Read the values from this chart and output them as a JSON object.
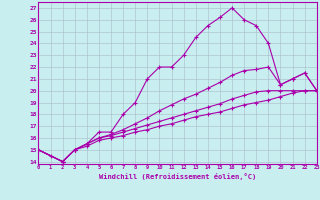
{
  "xlabel": "Windchill (Refroidissement éolien,°C)",
  "x_ticks": [
    0,
    1,
    2,
    3,
    4,
    5,
    6,
    7,
    8,
    9,
    10,
    11,
    12,
    13,
    14,
    15,
    16,
    17,
    18,
    19,
    20,
    21,
    22,
    23
  ],
  "y_ticks": [
    14,
    15,
    16,
    17,
    18,
    19,
    20,
    21,
    22,
    23,
    24,
    25,
    26,
    27
  ],
  "xlim": [
    0,
    23
  ],
  "ylim": [
    13.8,
    27.5
  ],
  "background_color": "#c8eef0",
  "grid_color": "#aabbcc",
  "line_color": "#aa00aa",
  "line1_x": [
    0,
    1,
    2,
    3,
    4,
    5,
    6,
    7,
    8,
    9,
    10,
    11,
    12,
    13,
    14,
    15,
    16,
    17,
    18,
    19,
    20,
    21,
    22,
    23
  ],
  "line1_y": [
    15.0,
    14.5,
    14.0,
    15.0,
    15.5,
    16.5,
    16.5,
    18.0,
    19.0,
    21.0,
    22.0,
    22.0,
    23.0,
    24.5,
    25.5,
    26.2,
    27.0,
    26.0,
    25.5,
    24.0,
    20.5,
    21.0,
    21.5,
    20.0
  ],
  "line2_x": [
    0,
    2,
    3,
    4,
    5,
    6,
    7,
    8,
    9,
    10,
    11,
    12,
    13,
    14,
    15,
    16,
    17,
    18,
    19,
    20,
    21,
    22,
    23
  ],
  "line2_y": [
    15.0,
    14.0,
    15.0,
    15.5,
    16.0,
    16.3,
    16.7,
    17.2,
    17.7,
    18.3,
    18.8,
    19.3,
    19.7,
    20.2,
    20.7,
    21.3,
    21.7,
    21.8,
    22.0,
    20.5,
    21.0,
    21.5,
    20.0
  ],
  "line3_x": [
    0,
    2,
    3,
    4,
    5,
    6,
    7,
    8,
    9,
    10,
    11,
    12,
    13,
    14,
    15,
    16,
    17,
    18,
    19,
    20,
    21,
    22,
    23
  ],
  "line3_y": [
    15.0,
    14.0,
    15.0,
    15.5,
    16.0,
    16.2,
    16.5,
    16.8,
    17.1,
    17.4,
    17.7,
    18.0,
    18.3,
    18.6,
    18.9,
    19.3,
    19.6,
    19.9,
    20.0,
    20.0,
    20.0,
    20.0,
    20.0
  ],
  "line4_x": [
    0,
    2,
    3,
    4,
    5,
    6,
    7,
    8,
    9,
    10,
    11,
    12,
    13,
    14,
    15,
    16,
    17,
    18,
    19,
    20,
    21,
    22,
    23
  ],
  "line4_y": [
    15.0,
    14.0,
    15.0,
    15.3,
    15.8,
    16.0,
    16.2,
    16.5,
    16.7,
    17.0,
    17.2,
    17.5,
    17.8,
    18.0,
    18.2,
    18.5,
    18.8,
    19.0,
    19.2,
    19.5,
    19.8,
    20.0,
    20.0
  ]
}
